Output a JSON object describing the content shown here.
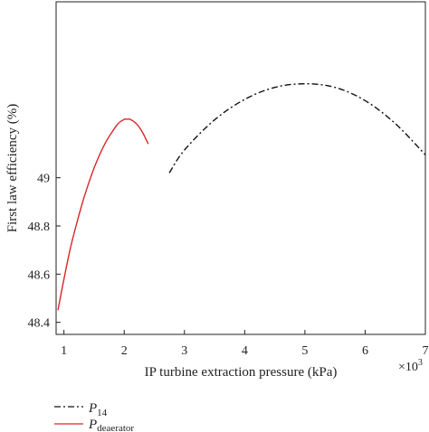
{
  "chart_data": {
    "type": "line",
    "title": "",
    "xlabel": "IP turbine extraction pressure (kPa)",
    "ylabel": "First law efficiency (%)",
    "x_multiplier_label": "×10",
    "x_multiplier_exponent": "3",
    "xlim": [
      0.87,
      7.0
    ],
    "ylim": [
      48.35,
      49.73
    ],
    "x_ticks": [
      1,
      2,
      3,
      4,
      5,
      6,
      7
    ],
    "y_ticks": [
      48.4,
      48.6,
      48.8,
      49
    ],
    "x_tick_labels": [
      "1",
      "2",
      "3",
      "4",
      "5",
      "6",
      "7"
    ],
    "y_tick_labels": [
      "48.4",
      "48.6",
      "48.8",
      "49"
    ],
    "grid": false,
    "legend_position": "below-left",
    "series": [
      {
        "name_main": "P",
        "name_sub": "14",
        "style": "dash-dot",
        "color": "#111111",
        "x": [
          2.75,
          3.0,
          3.5,
          4.0,
          4.5,
          5.0,
          5.5,
          6.0,
          6.5,
          7.0
        ],
        "y": [
          49.02,
          49.115,
          49.24,
          49.325,
          49.375,
          49.39,
          49.375,
          49.32,
          49.225,
          49.095
        ]
      },
      {
        "name_main": "P",
        "name_sub": "deaerator",
        "style": "solid",
        "color": "#d62728",
        "x": [
          0.9,
          1.0,
          1.1,
          1.2,
          1.3,
          1.4,
          1.5,
          1.6,
          1.7,
          1.8,
          1.9,
          2.0,
          2.05,
          2.1,
          2.2,
          2.3,
          2.4
        ],
        "y": [
          48.45,
          48.58,
          48.7,
          48.8,
          48.89,
          48.97,
          49.04,
          49.1,
          49.15,
          49.19,
          49.225,
          49.242,
          49.243,
          49.242,
          49.225,
          49.19,
          49.14
        ]
      }
    ]
  }
}
